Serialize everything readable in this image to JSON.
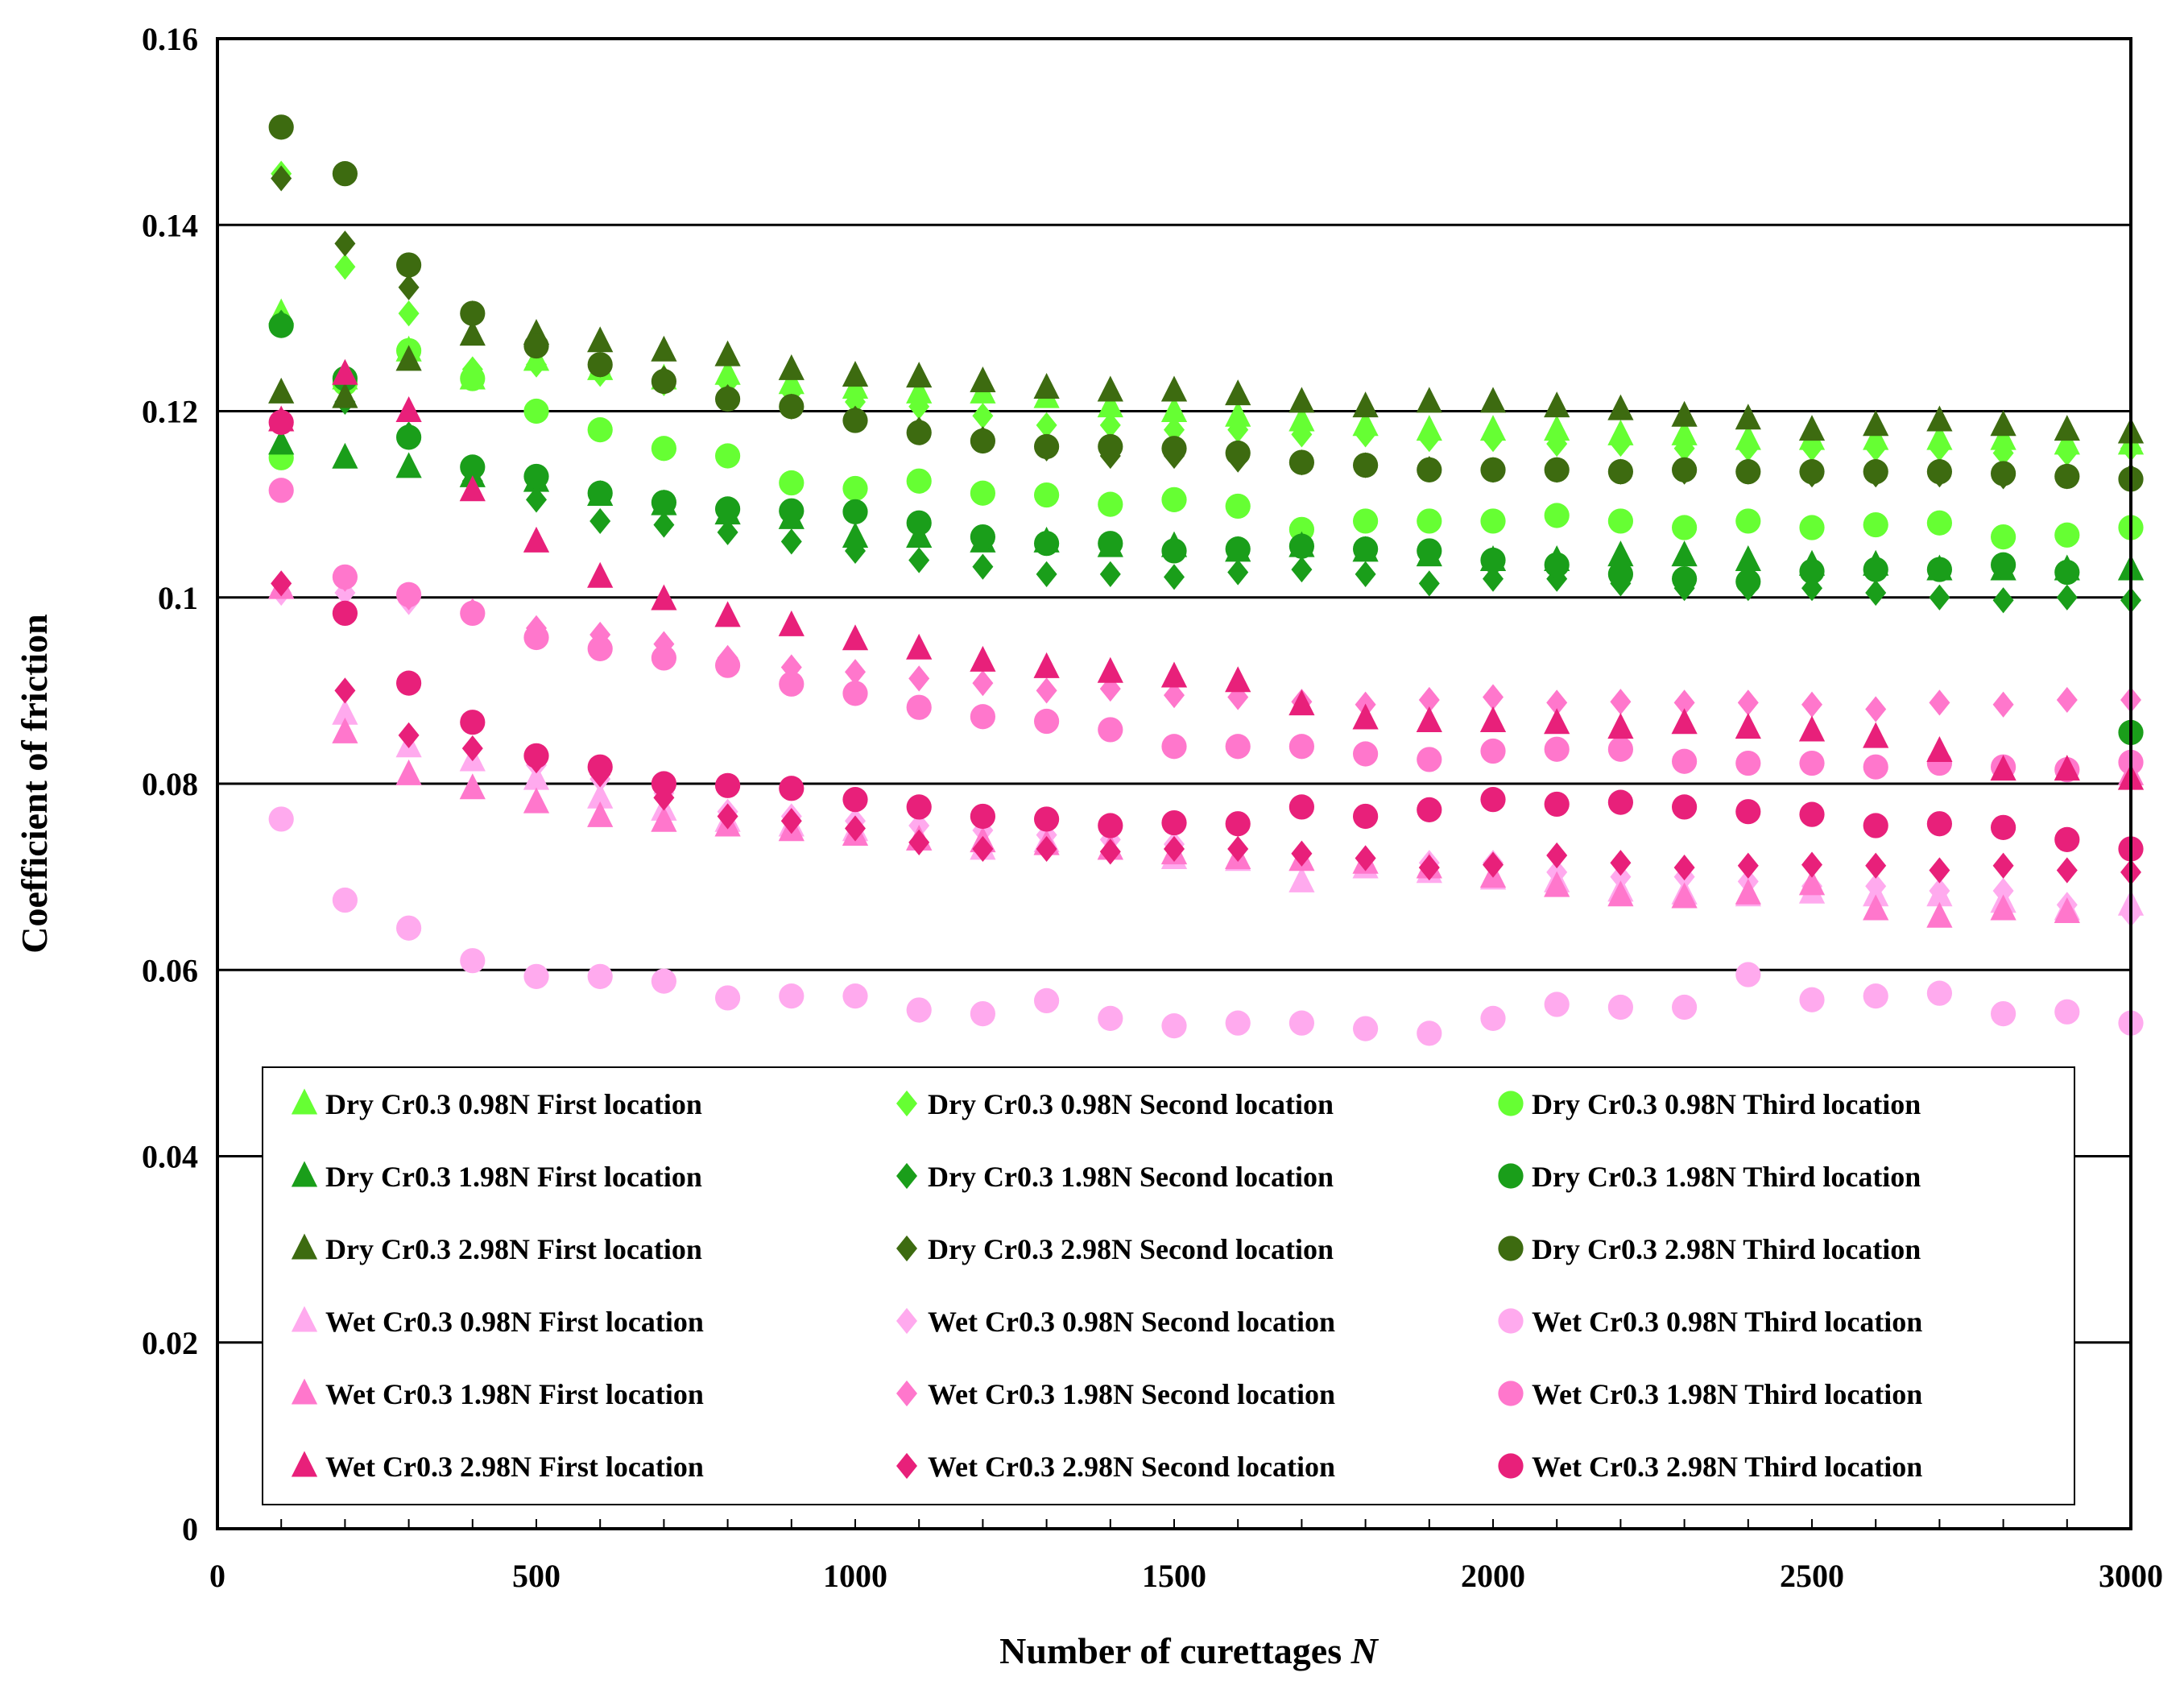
{
  "chart_data": {
    "type": "scatter",
    "title": "",
    "xlabel": "Number of curettages",
    "xlabel_italic_var": "N",
    "ylabel": "Coefficient of friction",
    "xlim": [
      0,
      3000
    ],
    "ylim": [
      0,
      0.16
    ],
    "x_ticks": [
      "0",
      "500",
      "1000",
      "1500",
      "2000",
      "2500",
      "3000"
    ],
    "y_ticks": [
      "0",
      "0.02",
      "0.04",
      "0.06",
      "0.08",
      "0.1",
      "0.12",
      "0.14",
      "0.16"
    ],
    "grid": "horizontal",
    "legend_position": "bottom-inside",
    "x": [
      100,
      200,
      300,
      400,
      500,
      600,
      700,
      800,
      900,
      1000,
      1100,
      1200,
      1300,
      1400,
      1500,
      1600,
      1700,
      1800,
      1900,
      2000,
      2100,
      2200,
      2300,
      2400,
      2500,
      2600,
      2700,
      2800,
      2900,
      3000
    ],
    "series": [
      {
        "name": "Dry Cr0.3 0.98N First location",
        "marker": "triangle",
        "color": "#66ff33",
        "values": [
          0.1305,
          0.1235,
          0.1265,
          0.1235,
          0.1255,
          0.1245,
          0.1235,
          0.124,
          0.123,
          0.1225,
          0.122,
          0.122,
          0.1215,
          0.1205,
          0.12,
          0.1195,
          0.119,
          0.1185,
          0.118,
          0.118,
          0.118,
          0.1175,
          0.1175,
          0.117,
          0.117,
          0.117,
          0.117,
          0.117,
          0.1165,
          0.1165
        ]
      },
      {
        "name": "Dry Cr0.3 0.98N Second location",
        "marker": "diamond",
        "color": "#66ff33",
        "values": [
          0.1455,
          0.1355,
          0.1305,
          0.1245,
          0.125,
          0.124,
          0.123,
          0.123,
          0.122,
          0.121,
          0.1205,
          0.1195,
          0.1185,
          0.1185,
          0.118,
          0.118,
          0.1175,
          0.1175,
          0.117,
          0.117,
          0.1165,
          0.1165,
          0.116,
          0.116,
          0.116,
          0.116,
          0.116,
          0.1155,
          0.1155,
          0.116
        ]
      },
      {
        "name": "Dry Cr0.3 0.98N Third location",
        "marker": "circle",
        "color": "#66ff33",
        "values": [
          0.115,
          0.123,
          0.1265,
          0.1235,
          0.12,
          0.118,
          0.116,
          0.1152,
          0.1123,
          0.1117,
          0.1125,
          0.1112,
          0.111,
          0.11,
          0.1105,
          0.1098,
          0.1073,
          0.1082,
          0.1082,
          0.1082,
          0.1088,
          0.1082,
          0.1075,
          0.1082,
          0.1075,
          0.1078,
          0.108,
          0.1065,
          0.1067,
          0.1075
        ]
      },
      {
        "name": "Dry Cr0.3 1.98N First location",
        "marker": "triangle",
        "color": "#1a9e1a",
        "values": [
          0.1165,
          0.115,
          0.114,
          0.113,
          0.1125,
          0.111,
          0.11,
          0.109,
          0.1085,
          0.1065,
          0.1065,
          0.106,
          0.106,
          0.1055,
          0.1055,
          0.105,
          0.1055,
          0.105,
          0.1045,
          0.104,
          0.104,
          0.1045,
          0.1045,
          0.104,
          0.1035,
          0.1035,
          0.103,
          0.103,
          0.103,
          0.103
        ]
      },
      {
        "name": "Dry Cr0.3 1.98N Second location",
        "marker": "diamond",
        "color": "#1a9e1a",
        "values": [
          0.1295,
          0.121,
          0.1175,
          0.1125,
          0.1105,
          0.1082,
          0.1078,
          0.107,
          0.106,
          0.105,
          0.104,
          0.1033,
          0.1025,
          0.1025,
          0.1022,
          0.1027,
          0.103,
          0.1025,
          0.1015,
          0.102,
          0.102,
          0.1015,
          0.101,
          0.101,
          0.101,
          0.1005,
          0.1,
          0.0997,
          0.1,
          0.0997
        ]
      },
      {
        "name": "Dry Cr0.3 1.98N Third location",
        "marker": "circle",
        "color": "#1a9e1a",
        "values": [
          0.1292,
          0.1235,
          0.1172,
          0.114,
          0.113,
          0.1112,
          0.1102,
          0.1095,
          0.1093,
          0.1092,
          0.108,
          0.1065,
          0.1058,
          0.1058,
          0.105,
          0.1052,
          0.1055,
          0.1052,
          0.105,
          0.104,
          0.1035,
          0.1025,
          0.102,
          0.1017,
          0.1028,
          0.103,
          0.103,
          0.1035,
          0.1027,
          0.0855
        ]
      },
      {
        "name": "Dry Cr0.3 2.98N First location",
        "marker": "triangle",
        "color": "#3d6b10",
        "values": [
          0.122,
          0.1215,
          0.1255,
          0.1282,
          0.1283,
          0.1275,
          0.1265,
          0.126,
          0.1245,
          0.1238,
          0.1237,
          0.1232,
          0.1225,
          0.1222,
          0.1222,
          0.1218,
          0.121,
          0.1205,
          0.121,
          0.121,
          0.1205,
          0.1202,
          0.1195,
          0.1192,
          0.118,
          0.1185,
          0.119,
          0.1185,
          0.118,
          0.1177
        ]
      },
      {
        "name": "Dry Cr0.3 2.98N Second location",
        "marker": "diamond",
        "color": "#3d6b10",
        "values": [
          0.145,
          0.138,
          0.1333,
          0.1305,
          0.1275,
          0.125,
          0.1235,
          0.1215,
          0.1205,
          0.1192,
          0.118,
          0.117,
          0.116,
          0.1152,
          0.1152,
          0.1148,
          0.1145,
          0.1142,
          0.1138,
          0.1137,
          0.1137,
          0.1135,
          0.1135,
          0.1135,
          0.1132,
          0.1132,
          0.1132,
          0.113,
          0.113,
          0.113
        ]
      },
      {
        "name": "Dry Cr0.3 2.98N Third location",
        "marker": "circle",
        "color": "#3d6b10",
        "values": [
          0.1505,
          0.1455,
          0.1357,
          0.1305,
          0.127,
          0.125,
          0.1232,
          0.1213,
          0.1205,
          0.119,
          0.1177,
          0.1168,
          0.1162,
          0.1162,
          0.116,
          0.1155,
          0.1145,
          0.1142,
          0.1137,
          0.1137,
          0.1137,
          0.1135,
          0.1137,
          0.1135,
          0.1135,
          0.1135,
          0.1135,
          0.1133,
          0.113,
          0.1127
        ]
      },
      {
        "name": "Wet Cr0.3 0.98N First location",
        "marker": "triangle",
        "color": "#ffaaee",
        "values": [
          0.101,
          0.0875,
          0.084,
          0.0825,
          0.0805,
          0.0785,
          0.0772,
          0.076,
          0.0755,
          0.075,
          0.074,
          0.073,
          0.0738,
          0.073,
          0.072,
          0.0718,
          0.0695,
          0.071,
          0.0705,
          0.0698,
          0.0695,
          0.0685,
          0.0682,
          0.068,
          0.0683,
          0.068,
          0.068,
          0.0673,
          0.0665,
          0.067
        ]
      },
      {
        "name": "Wet Cr0.3 0.98N Second location",
        "marker": "diamond",
        "color": "#ffaaee",
        "values": [
          0.1005,
          0.1005,
          0.0995,
          0.0985,
          0.082,
          0.0805,
          0.079,
          0.077,
          0.0765,
          0.076,
          0.0755,
          0.075,
          0.0745,
          0.074,
          0.0735,
          0.073,
          0.0725,
          0.072,
          0.0715,
          0.0715,
          0.0705,
          0.07,
          0.07,
          0.0695,
          0.069,
          0.069,
          0.0685,
          0.0685,
          0.067,
          0.066
        ]
      },
      {
        "name": "Wet Cr0.3 0.98N Third location",
        "marker": "circle",
        "color": "#ffaaee",
        "values": [
          0.0762,
          0.0675,
          0.0645,
          0.061,
          0.0593,
          0.0593,
          0.0588,
          0.057,
          0.0572,
          0.0572,
          0.0557,
          0.0553,
          0.0567,
          0.0548,
          0.054,
          0.0543,
          0.0543,
          0.0537,
          0.0532,
          0.0548,
          0.0563,
          0.056,
          0.056,
          0.0595,
          0.0568,
          0.0572,
          0.0575,
          0.0553,
          0.0555,
          0.0543
        ]
      },
      {
        "name": "Wet Cr0.3 1.98N First location",
        "marker": "triangle",
        "color": "#ff77cc",
        "values": [
          0.101,
          0.0855,
          0.081,
          0.0795,
          0.078,
          0.0765,
          0.076,
          0.0755,
          0.075,
          0.0745,
          0.074,
          0.0738,
          0.0735,
          0.073,
          0.0725,
          0.072,
          0.0718,
          0.0715,
          0.071,
          0.07,
          0.069,
          0.068,
          0.0678,
          0.0682,
          0.0692,
          0.0665,
          0.0657,
          0.0665,
          0.0662,
          0.081
        ]
      },
      {
        "name": "Wet Cr0.3 1.98N Second location",
        "marker": "diamond",
        "color": "#ff77cc",
        "values": [
          0.1015,
          0.102,
          0.1,
          0.0985,
          0.0967,
          0.096,
          0.095,
          0.0935,
          0.0925,
          0.092,
          0.0913,
          0.0908,
          0.09,
          0.0902,
          0.0895,
          0.0893,
          0.0888,
          0.0885,
          0.089,
          0.0893,
          0.0887,
          0.0888,
          0.0887,
          0.0887,
          0.0885,
          0.088,
          0.0887,
          0.0885,
          0.089,
          0.089
        ]
      },
      {
        "name": "Wet Cr0.3 1.98N Third location",
        "marker": "circle",
        "color": "#ff77cc",
        "values": [
          0.1115,
          0.1022,
          0.1003,
          0.0983,
          0.0957,
          0.0945,
          0.0935,
          0.0927,
          0.0907,
          0.0897,
          0.0882,
          0.0872,
          0.0867,
          0.0858,
          0.084,
          0.084,
          0.084,
          0.0832,
          0.0826,
          0.0835,
          0.0837,
          0.0837,
          0.0824,
          0.0822,
          0.0822,
          0.0818,
          0.0822,
          0.0818,
          0.0815,
          0.0823
        ]
      },
      {
        "name": "Wet Cr0.3 2.98N First location",
        "marker": "triangle",
        "color": "#e8207a",
        "values": [
          0.119,
          0.124,
          0.12,
          0.1115,
          0.106,
          0.1022,
          0.0998,
          0.098,
          0.097,
          0.0955,
          0.0945,
          0.0932,
          0.0925,
          0.092,
          0.0915,
          0.091,
          0.0885,
          0.087,
          0.0867,
          0.0867,
          0.0865,
          0.086,
          0.0865,
          0.086,
          0.0857,
          0.085,
          0.0835,
          0.0815,
          0.0815,
          0.0805
        ]
      },
      {
        "name": "Wet Cr0.3 2.98N Second location",
        "marker": "diamond",
        "color": "#e8207a",
        "values": [
          0.1015,
          0.09,
          0.0852,
          0.0838,
          0.0825,
          0.081,
          0.0785,
          0.0765,
          0.076,
          0.0752,
          0.0737,
          0.073,
          0.073,
          0.0727,
          0.073,
          0.073,
          0.0725,
          0.072,
          0.071,
          0.0713,
          0.0723,
          0.0715,
          0.071,
          0.0712,
          0.0713,
          0.0712,
          0.0707,
          0.0712,
          0.0707,
          0.0705
        ]
      },
      {
        "name": "Wet Cr0.3 2.98N Third location",
        "marker": "circle",
        "color": "#e8207a",
        "values": [
          0.1188,
          0.0983,
          0.0908,
          0.0866,
          0.083,
          0.0818,
          0.08,
          0.0798,
          0.0795,
          0.0783,
          0.0775,
          0.0765,
          0.0762,
          0.0755,
          0.0758,
          0.0757,
          0.0775,
          0.0765,
          0.0772,
          0.0783,
          0.0778,
          0.078,
          0.0775,
          0.077,
          0.0767,
          0.0755,
          0.0757,
          0.0753,
          0.074,
          0.073
        ]
      }
    ]
  }
}
